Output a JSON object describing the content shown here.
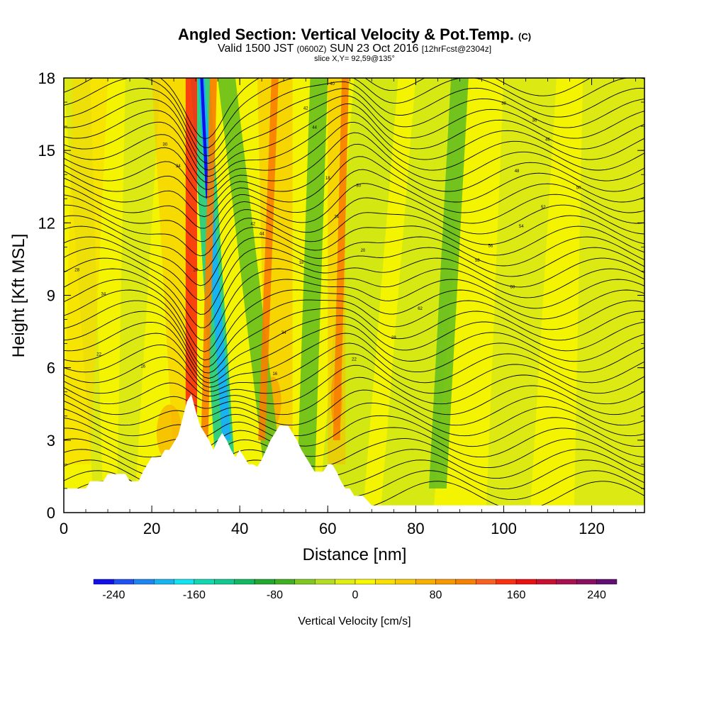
{
  "header": {
    "title": "Angled Section: Vertical Velocity & Pot.Temp.",
    "title_unit": "(C)",
    "valid_prefix": "Valid 1500 JST",
    "valid_z": "(0600Z)",
    "valid_date": "SUN 23 Oct 2016",
    "valid_fcst": "[12hrFcst@2304z]",
    "slice": "slice X,Y= 92,59@135°"
  },
  "chart_data": {
    "type": "heatmap",
    "xlabel": "Distance [nm]",
    "ylabel": "Height [Kft MSL]",
    "xlim": [
      0,
      132
    ],
    "ylim": [
      0,
      18
    ],
    "x_ticks": [
      0,
      20,
      40,
      60,
      80,
      100,
      120
    ],
    "y_ticks": [
      0,
      3,
      6,
      9,
      12,
      15,
      18
    ],
    "fill_variable": "Vertical Velocity",
    "contour_variable": "Pot.Temp.",
    "colorbar": {
      "label": "Vertical Velocity [cm/s]",
      "ticks": [
        -240,
        -160,
        -80,
        0,
        80,
        160,
        240
      ],
      "levels": [
        -260,
        -240,
        -220,
        -200,
        -180,
        -160,
        -140,
        -120,
        -100,
        -80,
        -60,
        -40,
        -20,
        0,
        20,
        40,
        60,
        80,
        100,
        120,
        140,
        160,
        180,
        200,
        220,
        240,
        260
      ],
      "colors": [
        "#1010e8",
        "#2050f0",
        "#1c86f0",
        "#18b4f0",
        "#10e4f0",
        "#10d8b0",
        "#10c890",
        "#10b860",
        "#20a830",
        "#40b020",
        "#80c820",
        "#b4dc20",
        "#e0ee10",
        "#f8f800",
        "#f8e000",
        "#f8c800",
        "#f8b000",
        "#f89800",
        "#f88000",
        "#f86020",
        "#f83010",
        "#e81010",
        "#c81030",
        "#a81050",
        "#881060",
        "#601070"
      ]
    },
    "terrain_profile": [
      [
        0,
        1
      ],
      [
        5,
        1
      ],
      [
        6,
        1.3
      ],
      [
        9,
        1.3
      ],
      [
        10,
        1.6
      ],
      [
        14,
        1.6
      ],
      [
        15,
        1.3
      ],
      [
        17,
        1.3
      ],
      [
        18,
        1.7
      ],
      [
        19,
        2
      ],
      [
        20,
        2.3
      ],
      [
        22,
        2.3
      ],
      [
        23,
        2.6
      ],
      [
        24,
        2.6
      ],
      [
        25,
        2.9
      ],
      [
        26,
        3.2
      ],
      [
        27,
        3.9
      ],
      [
        28,
        4.6
      ],
      [
        29,
        4.9
      ],
      [
        30,
        4.2
      ],
      [
        31,
        3.6
      ],
      [
        32,
        3.3
      ],
      [
        33,
        3.0
      ],
      [
        34,
        2.6
      ],
      [
        35,
        3.0
      ],
      [
        36,
        3.3
      ],
      [
        37,
        3.0
      ],
      [
        38,
        2.6
      ],
      [
        39,
        2.3
      ],
      [
        40,
        2.6
      ],
      [
        41,
        2.3
      ],
      [
        42,
        2.0
      ],
      [
        43,
        2.0
      ],
      [
        44,
        1.9
      ],
      [
        45,
        2.2
      ],
      [
        46,
        2.6
      ],
      [
        47,
        3.0
      ],
      [
        48,
        3.3
      ],
      [
        49,
        3.6
      ],
      [
        50,
        3.6
      ],
      [
        51,
        3.6
      ],
      [
        52,
        3.3
      ],
      [
        53,
        3.0
      ],
      [
        54,
        2.6
      ],
      [
        55,
        2.3
      ],
      [
        56,
        2.0
      ],
      [
        57,
        1.7
      ],
      [
        58,
        1.7
      ],
      [
        59,
        1.7
      ],
      [
        60,
        2.0
      ],
      [
        61,
        2.0
      ],
      [
        62,
        1.7
      ],
      [
        63,
        1.3
      ],
      [
        64,
        1.0
      ],
      [
        65,
        1.0
      ],
      [
        66,
        0.7
      ],
      [
        68,
        0.7
      ],
      [
        69,
        0.5
      ],
      [
        70,
        0.3
      ],
      [
        132,
        0.3
      ]
    ],
    "updraft_cores": [
      {
        "x_top": 29,
        "x_bottom": 29,
        "label": "strong updraft"
      },
      {
        "x_top": 34,
        "x_bottom": 32,
        "label": "updraft"
      },
      {
        "x_top": 48,
        "x_bottom": 45,
        "label": "updraft"
      },
      {
        "x_top": 64,
        "x_bottom": 62,
        "label": "updraft"
      }
    ],
    "downdraft_bands": [
      {
        "x_top": 31,
        "x_bottom": 37,
        "label": "strong downdraft"
      },
      {
        "x_top": 37,
        "x_bottom": 48,
        "label": "downdraft"
      },
      {
        "x_top": 58,
        "x_bottom": 55,
        "label": "downdraft"
      },
      {
        "x_top": 90,
        "x_bottom": 85,
        "label": "downdraft"
      }
    ],
    "contour_labels": [
      "28",
      "22",
      "34",
      "16",
      "30",
      "24",
      "20",
      "18",
      "44",
      "42",
      "40",
      "38",
      "36",
      "46",
      "48",
      "50",
      "52",
      "54",
      "56",
      "58",
      "60",
      "62"
    ]
  }
}
